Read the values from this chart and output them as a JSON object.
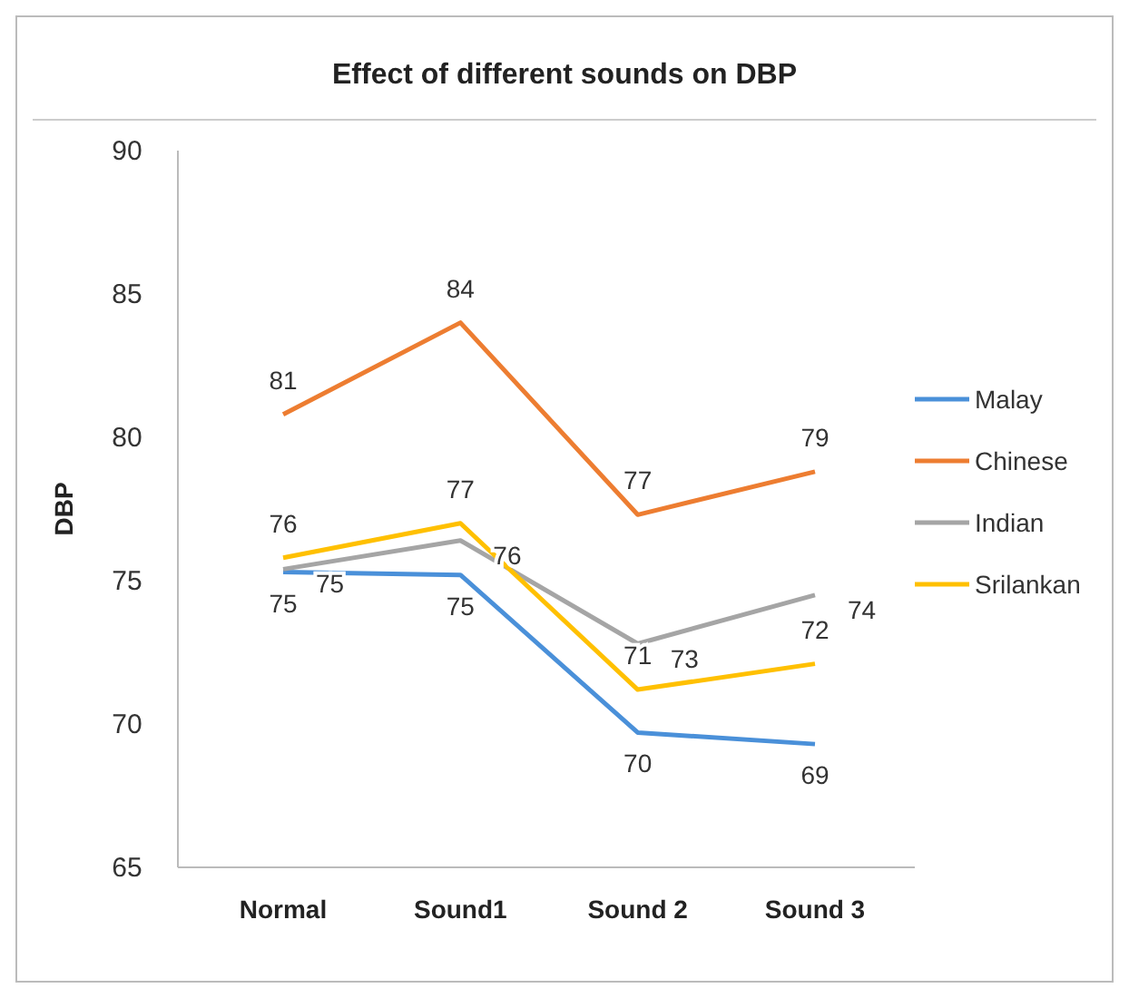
{
  "chart_data": {
    "type": "line",
    "title": "Effect of different sounds on DBP",
    "ylabel": "DBP",
    "categories": [
      "Normal",
      "Sound1",
      "Sound 2",
      "Sound 3"
    ],
    "ylim": [
      65,
      90
    ],
    "yticks": [
      65,
      70,
      75,
      80,
      85,
      90
    ],
    "grid": false,
    "legend": "right",
    "marker": "none",
    "series": [
      {
        "name": "Malay",
        "color": "#4a90d9",
        "values": [
          75.3,
          75.2,
          69.7,
          69.3
        ],
        "value_labels": [
          "75",
          "75",
          "70",
          "69"
        ]
      },
      {
        "name": "Chinese",
        "color": "#ed7d31",
        "values": [
          80.8,
          84.0,
          77.3,
          78.8
        ],
        "value_labels": [
          "81",
          "84",
          "77",
          "79"
        ]
      },
      {
        "name": "Indian",
        "color": "#a5a5a5",
        "values": [
          75.4,
          76.4,
          72.8,
          74.5
        ],
        "value_labels": [
          "75",
          "76",
          "73",
          "74"
        ]
      },
      {
        "name": "Srilankan",
        "color": "#ffc000",
        "values": [
          75.8,
          77.0,
          71.2,
          72.1
        ],
        "value_labels": [
          "76",
          "77",
          "71",
          "72"
        ]
      }
    ]
  }
}
